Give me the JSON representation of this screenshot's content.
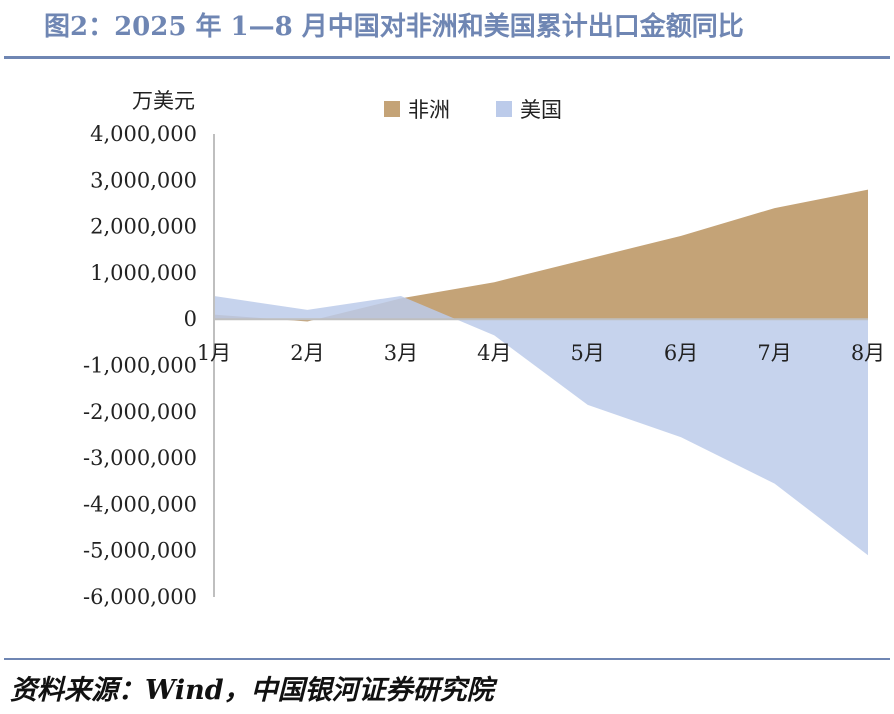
{
  "title": "图2：2025 年 1—8 月中国对非洲和美国累计出口金额同比",
  "source": "资料来源：Wind，中国银河证券研究院",
  "chart_data": {
    "type": "area",
    "unit_label": "万美元",
    "categories": [
      "1月",
      "2月",
      "3月",
      "4月",
      "5月",
      "6月",
      "7月",
      "8月"
    ],
    "ylim": [
      -6000000,
      4000000
    ],
    "y_ticks": [
      4000000,
      3000000,
      2000000,
      1000000,
      0,
      -1000000,
      -2000000,
      -3000000,
      -4000000,
      -5000000,
      -6000000
    ],
    "y_tick_labels": [
      "4,000,000",
      "3,000,000",
      "2,000,000",
      "1,000,000",
      "0",
      "-1,000,000",
      "-2,000,000",
      "-3,000,000",
      "-4,000,000",
      "-5,000,000",
      "-6,000,000"
    ],
    "legend_position": "top",
    "series": [
      {
        "name": "非洲",
        "color": "#c4a377",
        "values": [
          100000,
          -50000,
          450000,
          800000,
          1300000,
          1800000,
          2400000,
          2800000
        ]
      },
      {
        "name": "美国",
        "color": "#bccbea",
        "values": [
          500000,
          200000,
          500000,
          -350000,
          -1850000,
          -2550000,
          -3550000,
          -5100000
        ]
      }
    ],
    "grid": false
  }
}
